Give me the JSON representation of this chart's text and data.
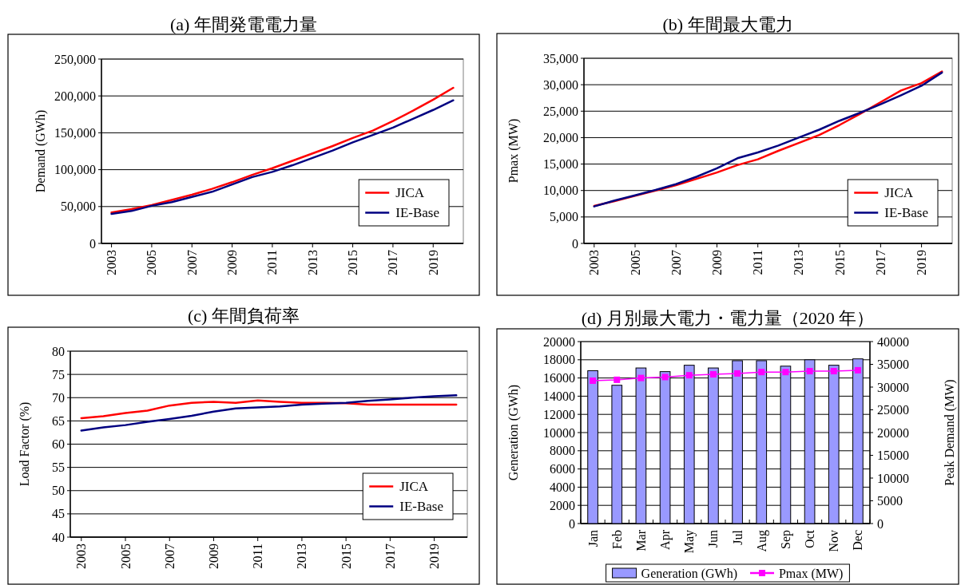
{
  "chart_data": [
    {
      "type": "line",
      "title": "(a) 年間発電電力量",
      "ylabel": "Demand (GWh)",
      "x": [
        2003,
        2004,
        2005,
        2006,
        2007,
        2008,
        2009,
        2010,
        2011,
        2012,
        2013,
        2014,
        2015,
        2016,
        2017,
        2018,
        2019,
        2020
      ],
      "xlim": [
        2002.5,
        2020.5
      ],
      "xticks": [
        2003,
        2005,
        2007,
        2009,
        2011,
        2013,
        2015,
        2017,
        2019
      ],
      "ylim": [
        0,
        250000
      ],
      "yticks": [
        0,
        {
          "value": 50000,
          "label": "50,000"
        },
        {
          "value": 100000,
          "label": "100,000"
        },
        {
          "value": 150000,
          "label": "150,000"
        },
        {
          "value": 200000,
          "label": "200,000"
        },
        {
          "value": 250000,
          "label": "250,000"
        }
      ],
      "grid": "y",
      "legend": "bottom right",
      "series": [
        {
          "name": "JICA",
          "color": "#ff0000",
          "values": [
            42000,
            46500,
            52000,
            59000,
            66000,
            74000,
            83000,
            93000,
            102000,
            112000,
            122000,
            132000,
            143000,
            153000,
            166000,
            180000,
            195000,
            211000
          ]
        },
        {
          "name": "IE-Base",
          "color": "#000080",
          "values": [
            40000,
            44000,
            51000,
            56000,
            63000,
            70000,
            80000,
            90000,
            97000,
            106000,
            116000,
            126000,
            137000,
            147000,
            157000,
            169000,
            181000,
            194000
          ]
        }
      ]
    },
    {
      "type": "line",
      "title": "(b) 年間最大電力",
      "ylabel": "Pmax (MW)",
      "x": [
        2003,
        2004,
        2005,
        2006,
        2007,
        2008,
        2009,
        2010,
        2011,
        2012,
        2013,
        2014,
        2015,
        2016,
        2017,
        2018,
        2019,
        2020
      ],
      "xlim": [
        2002.5,
        2020.5
      ],
      "xticks": [
        2003,
        2005,
        2007,
        2009,
        2011,
        2013,
        2015,
        2017,
        2019
      ],
      "ylim": [
        0,
        35000
      ],
      "yticks": [
        0,
        {
          "value": 5000,
          "label": "5,000"
        },
        {
          "value": 10000,
          "label": "10,000"
        },
        {
          "value": 15000,
          "label": "15,000"
        },
        {
          "value": 20000,
          "label": "20,000"
        },
        {
          "value": 25000,
          "label": "25,000"
        },
        {
          "value": 30000,
          "label": "30,000"
        },
        {
          "value": 35000,
          "label": "35,000"
        }
      ],
      "grid": "y",
      "legend": "bottom right",
      "series": [
        {
          "name": "JICA",
          "color": "#ff0000",
          "values": [
            7100,
            8000,
            9000,
            10000,
            11000,
            12200,
            13400,
            14800,
            15900,
            17500,
            19000,
            20500,
            22400,
            24500,
            26700,
            28900,
            30300,
            32500
          ]
        },
        {
          "name": "IE-Base",
          "color": "#000080",
          "values": [
            7000,
            8100,
            9100,
            10100,
            11200,
            12600,
            14200,
            16100,
            17200,
            18500,
            20000,
            21500,
            23200,
            24700,
            26300,
            28000,
            29800,
            32300
          ]
        }
      ]
    },
    {
      "type": "line",
      "title": "(c) 年間負荷率",
      "ylabel": "Load Factor (%)",
      "x": [
        2003,
        2004,
        2005,
        2006,
        2007,
        2008,
        2009,
        2010,
        2011,
        2012,
        2013,
        2014,
        2015,
        2016,
        2017,
        2018,
        2019,
        2020
      ],
      "xlim": [
        2002.5,
        2020.5
      ],
      "xticks": [
        2003,
        2005,
        2007,
        2009,
        2011,
        2013,
        2015,
        2017,
        2019
      ],
      "ylim": [
        40,
        80
      ],
      "yticks": [
        40,
        45,
        50,
        55,
        60,
        65,
        70,
        75,
        80
      ],
      "grid": "y",
      "legend": "bottom right",
      "series": [
        {
          "name": "JICA",
          "color": "#ff0000",
          "values": [
            65.6,
            66.0,
            66.7,
            67.2,
            68.3,
            68.9,
            69.1,
            68.9,
            69.4,
            69.1,
            68.9,
            68.9,
            68.8,
            68.5,
            68.5,
            68.5,
            68.5,
            68.5
          ]
        },
        {
          "name": "IE-Base",
          "color": "#000080",
          "values": [
            62.9,
            63.6,
            64.1,
            64.8,
            65.4,
            66.1,
            67.0,
            67.7,
            67.9,
            68.1,
            68.5,
            68.7,
            68.9,
            69.3,
            69.6,
            70.0,
            70.3,
            70.5
          ]
        }
      ]
    },
    {
      "type": "bar",
      "title": "(d) 月別最大電力・電力量（2020 年）",
      "ylabel": "Generation (GWh)",
      "y2label": "Peak Demand (MW)",
      "categories": [
        "Jan",
        "Feb",
        "Mar",
        "Apr",
        "May",
        "Jun",
        "Jul",
        "Aug",
        "Sep",
        "Oct",
        "Nov",
        "Dec"
      ],
      "ylim": [
        0,
        20000
      ],
      "yticks": [
        0,
        2000,
        4000,
        6000,
        8000,
        10000,
        12000,
        14000,
        16000,
        18000,
        20000
      ],
      "y2lim": [
        0,
        40000
      ],
      "y2ticks": [
        0,
        5000,
        10000,
        15000,
        20000,
        25000,
        30000,
        35000,
        40000
      ],
      "grid": "y",
      "legend": "bottom",
      "series": [
        {
          "name": "Generation (GWh)",
          "color": "#9999ff",
          "values": [
            16800,
            15200,
            17100,
            16700,
            17400,
            17100,
            17900,
            17900,
            17300,
            18000,
            17400,
            18100
          ]
        },
        {
          "name": "Pmax (MW)",
          "type": "line",
          "axis": "y2",
          "marker": "square",
          "color": "#ff00ff",
          "values": [
            31400,
            31600,
            32000,
            32200,
            32600,
            32800,
            33000,
            33300,
            33300,
            33500,
            33500,
            33700
          ]
        }
      ]
    }
  ]
}
